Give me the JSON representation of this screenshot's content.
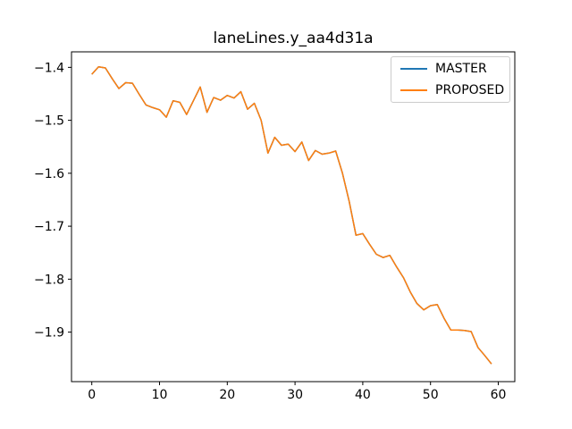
{
  "figure": {
    "title": "laneLines.y_aa4d31a",
    "background_color": "#ffffff",
    "spine_color": "#000000",
    "legend_border_color": "#cccccc"
  },
  "legend": {
    "position": "upper right",
    "items": [
      {
        "label": "MASTER",
        "color": "#1f77b4"
      },
      {
        "label": "PROPOSED",
        "color": "#ff7f0e"
      }
    ]
  },
  "chart_data": {
    "type": "line",
    "title": "laneLines.y_aa4d31a",
    "xlabel": "",
    "ylabel": "",
    "grid": false,
    "legend_position": "upper right",
    "xlim": [
      -2.995,
      62.44
    ],
    "ylim": [
      -1.9935,
      -1.3707
    ],
    "x_ticks": [
      {
        "value": 0,
        "label": "0"
      },
      {
        "value": 10,
        "label": "10"
      },
      {
        "value": 20,
        "label": "20"
      },
      {
        "value": 30,
        "label": "30"
      },
      {
        "value": 40,
        "label": "40"
      },
      {
        "value": 50,
        "label": "50"
      },
      {
        "value": 60,
        "label": "60"
      }
    ],
    "y_ticks": [
      {
        "value": -1.4,
        "label": "−1.4"
      },
      {
        "value": -1.5,
        "label": "−1.5"
      },
      {
        "value": -1.6,
        "label": "−1.6"
      },
      {
        "value": -1.7,
        "label": "−1.7"
      },
      {
        "value": -1.8,
        "label": "−1.8"
      },
      {
        "value": -1.9,
        "label": "−1.9"
      }
    ],
    "x": [
      0,
      1,
      2,
      3,
      4,
      5,
      6,
      7,
      8,
      9,
      10,
      11,
      12,
      13,
      14,
      15,
      16,
      17,
      18,
      19,
      20,
      21,
      22,
      23,
      24,
      25,
      26,
      27,
      28,
      29,
      30,
      31,
      32,
      33,
      34,
      35,
      36,
      37,
      38,
      39,
      40,
      41,
      42,
      43,
      44,
      45,
      46,
      47,
      48,
      49,
      50,
      51,
      52,
      53,
      54,
      55,
      56,
      57,
      58,
      59
    ],
    "series": [
      {
        "name": "MASTER",
        "color": "#1f77b4",
        "values": [
          -1.413,
          -1.399,
          -1.401,
          -1.421,
          -1.44,
          -1.429,
          -1.43,
          -1.451,
          -1.471,
          -1.476,
          -1.48,
          -1.494,
          -1.463,
          -1.466,
          -1.489,
          -1.463,
          -1.437,
          -1.485,
          -1.457,
          -1.462,
          -1.453,
          -1.458,
          -1.446,
          -1.479,
          -1.468,
          -1.5,
          -1.562,
          -1.532,
          -1.547,
          -1.545,
          -1.559,
          -1.541,
          -1.576,
          -1.557,
          -1.564,
          -1.562,
          -1.558,
          -1.6,
          -1.653,
          -1.717,
          -1.714,
          -1.734,
          -1.753,
          -1.759,
          -1.755,
          -1.777,
          -1.797,
          -1.824,
          -1.846,
          -1.858,
          -1.85,
          -1.848,
          -1.874,
          -1.896,
          -1.896,
          -1.897,
          -1.899,
          -1.929,
          -1.944,
          -1.96
        ]
      },
      {
        "name": "PROPOSED",
        "color": "#ff7f0e",
        "values": [
          -1.413,
          -1.399,
          -1.401,
          -1.421,
          -1.44,
          -1.429,
          -1.43,
          -1.451,
          -1.471,
          -1.476,
          -1.48,
          -1.494,
          -1.463,
          -1.466,
          -1.489,
          -1.463,
          -1.437,
          -1.485,
          -1.457,
          -1.462,
          -1.453,
          -1.458,
          -1.446,
          -1.479,
          -1.468,
          -1.5,
          -1.562,
          -1.532,
          -1.547,
          -1.545,
          -1.559,
          -1.541,
          -1.576,
          -1.557,
          -1.564,
          -1.562,
          -1.558,
          -1.6,
          -1.653,
          -1.717,
          -1.714,
          -1.734,
          -1.753,
          -1.759,
          -1.755,
          -1.777,
          -1.797,
          -1.824,
          -1.846,
          -1.858,
          -1.85,
          -1.848,
          -1.874,
          -1.896,
          -1.896,
          -1.897,
          -1.899,
          -1.929,
          -1.944,
          -1.96
        ]
      }
    ]
  }
}
